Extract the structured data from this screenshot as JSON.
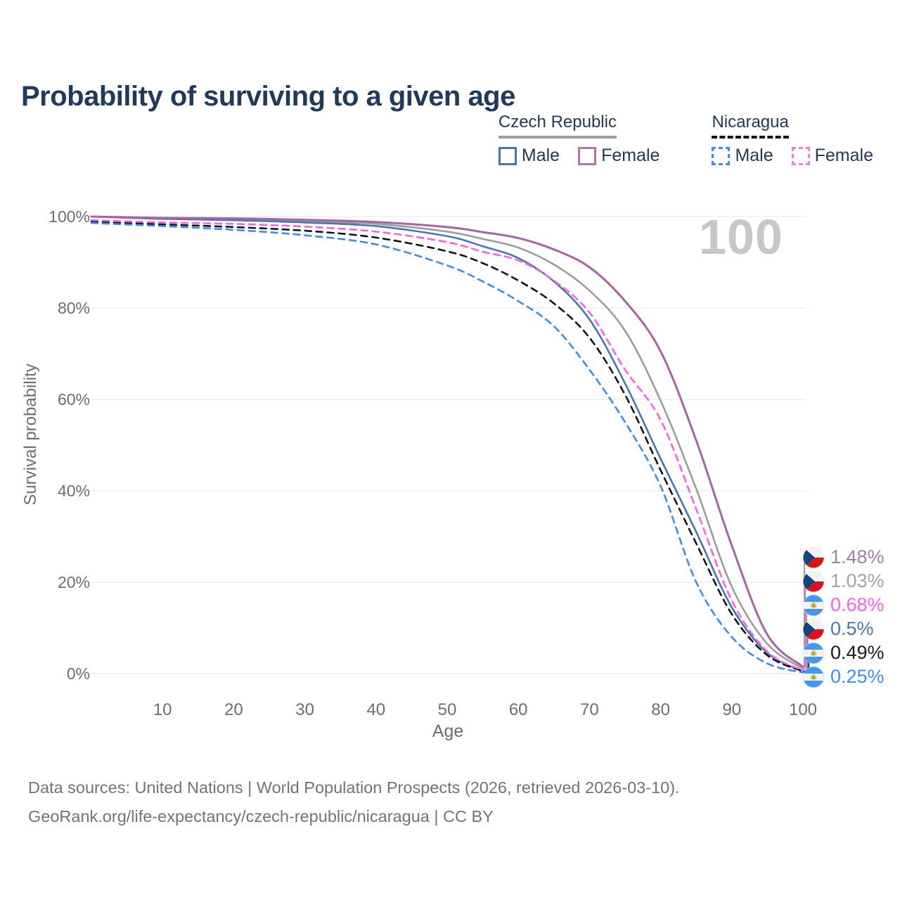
{
  "header": {
    "title": "Probability of surviving to a given age"
  },
  "legend": {
    "groups": [
      {
        "country": "Czech Republic",
        "line_style": "solid",
        "line_color": "#9e9e9e",
        "items": [
          {
            "label": "Male",
            "color": "#4676b4",
            "line_style": "solid"
          },
          {
            "label": "Female",
            "color": "#b573ad",
            "line_style": "solid"
          }
        ]
      },
      {
        "country": "Nicaragua",
        "line_style": "dashed",
        "line_color": "#161616",
        "items": [
          {
            "label": "Male",
            "color": "#3c8cf6",
            "line_style": "dashed"
          },
          {
            "label": "Female",
            "color": "#fc7ce0",
            "line_style": "dashed"
          }
        ]
      }
    ]
  },
  "watermark": {
    "hover_age": "100"
  },
  "chart_data": {
    "type": "line",
    "title": "Probability of surviving to a given age",
    "xlabel": "Age",
    "ylabel": "Survival probability",
    "xlim": [
      0,
      100
    ],
    "ylim": [
      0,
      100
    ],
    "grid": "horizontal",
    "legend_position": "top-right",
    "x_ticks": [
      {
        "value": 10,
        "label": "10"
      },
      {
        "value": 20,
        "label": "20"
      },
      {
        "value": 30,
        "label": "30"
      },
      {
        "value": 40,
        "label": "40"
      },
      {
        "value": 50,
        "label": "50"
      },
      {
        "value": 60,
        "label": "60"
      },
      {
        "value": 70,
        "label": "70"
      },
      {
        "value": 80,
        "label": "80"
      },
      {
        "value": 90,
        "label": "90"
      },
      {
        "value": 100,
        "label": "100"
      }
    ],
    "y_ticks": [
      {
        "value": 0,
        "label": "0%"
      },
      {
        "value": 20,
        "label": "20%"
      },
      {
        "value": 40,
        "label": "40%"
      },
      {
        "value": 60,
        "label": "60%"
      },
      {
        "value": 80,
        "label": "80%"
      },
      {
        "value": 100,
        "label": "100%"
      }
    ],
    "x": [
      0,
      10,
      20,
      30,
      40,
      50,
      55,
      60,
      65,
      70,
      75,
      80,
      85,
      90,
      95,
      100
    ],
    "series": [
      {
        "id": "czech-republic-female",
        "country": "Czech Republic",
        "sex": "Female",
        "color": "#a864a5",
        "label_color": "#a87ba8",
        "line_style": "solid",
        "width": 3,
        "flag": "czech-republic",
        "end_label": "1.48%",
        "values": [
          100,
          99.7,
          99.6,
          99.3,
          98.8,
          97.7,
          96.6,
          95.3,
          92.8,
          88.9,
          81.5,
          70.5,
          51.0,
          28.0,
          8.5,
          1.48
        ]
      },
      {
        "id": "czech-republic-total",
        "country": "Czech Republic",
        "sex": "Both",
        "color": "#9c9c9c",
        "label_color": "#a3a3a3",
        "line_style": "solid",
        "width": 2.6,
        "flag": "czech-republic",
        "end_label": "1.03%",
        "values": [
          100,
          99.6,
          99.4,
          99.0,
          98.4,
          96.7,
          95.1,
          93.2,
          89.5,
          83.8,
          75.0,
          59.7,
          40.4,
          19.0,
          6.5,
          1.03
        ]
      },
      {
        "id": "nicaragua-female",
        "country": "Nicaragua",
        "sex": "Female",
        "color": "#ff5fe6",
        "label_color": "#ff5fe6",
        "line_style": "dashed",
        "width": 2.6,
        "flag": "nicaragua",
        "end_label": "0.68%",
        "values": [
          99.2,
          98.7,
          98.4,
          97.8,
          96.7,
          94.4,
          92.3,
          90.4,
          86.0,
          79.0,
          66.5,
          55.5,
          36.0,
          16.0,
          4.8,
          0.68
        ]
      },
      {
        "id": "czech-republic-male",
        "country": "Czech Republic",
        "sex": "Male",
        "color": "#4676b4",
        "label_color": "#4676b4",
        "line_style": "solid",
        "width": 2.6,
        "flag": "czech-republic",
        "end_label": "0.5%",
        "values": [
          100,
          99.5,
          99.2,
          98.7,
          97.9,
          95.7,
          93.5,
          90.9,
          85.8,
          77.5,
          63.5,
          47.0,
          31.0,
          14.5,
          4.5,
          0.5
        ]
      },
      {
        "id": "nicaragua-total",
        "country": "Nicaragua",
        "sex": "Both",
        "color": "#141414",
        "label_color": "#1a1a1a",
        "line_style": "dashed",
        "width": 2.6,
        "flag": "nicaragua",
        "end_label": "0.49%",
        "values": [
          98.9,
          98.3,
          97.7,
          96.9,
          95.4,
          92.4,
          89.8,
          86.0,
          81.0,
          73.5,
          61.0,
          44.5,
          28.5,
          13.0,
          4.0,
          0.49
        ]
      },
      {
        "id": "nicaragua-male",
        "country": "Nicaragua",
        "sex": "Male",
        "color": "#3c8cf6",
        "label_color": "#3c8cf6",
        "line_style": "dashed",
        "width": 2.6,
        "flag": "nicaragua",
        "end_label": "0.25%",
        "values": [
          98.6,
          97.9,
          97.1,
          95.9,
          93.9,
          89.3,
          85.8,
          81.5,
          76.0,
          66.5,
          55.0,
          41.0,
          20.0,
          8.0,
          2.2,
          0.25
        ]
      }
    ]
  },
  "footer": {
    "line1": "Data sources: United Nations | World Population Prospects (2026, retrieved 2026-03-10).",
    "line2": "GeoRank.org/life-expectancy/czech-republic/nicaragua | CC BY"
  }
}
